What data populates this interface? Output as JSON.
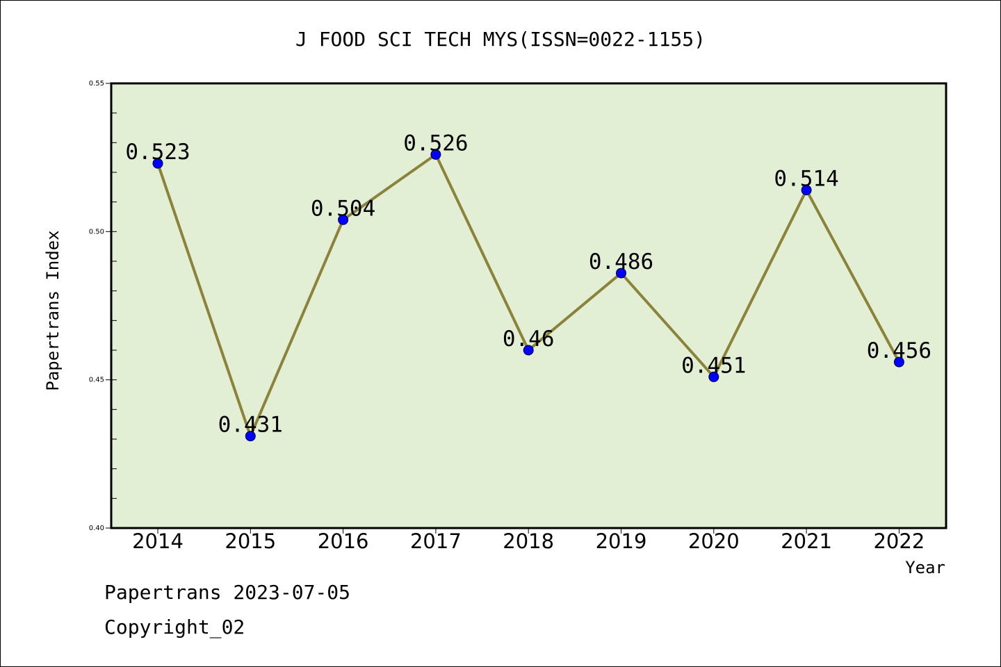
{
  "chart_data": {
    "type": "line",
    "title": "J FOOD SCI TECH MYS(ISSN=0022-1155)",
    "xlabel": "Year",
    "ylabel": "Papertrans Index",
    "categories": [
      "2014",
      "2015",
      "2016",
      "2017",
      "2018",
      "2019",
      "2020",
      "2021",
      "2022"
    ],
    "series": [
      {
        "values": [
          0.523,
          0.431,
          0.504,
          0.526,
          0.46,
          0.486,
          0.451,
          0.514,
          0.456
        ],
        "labels": [
          "0.523",
          "0.431",
          "0.504",
          "0.526",
          "0.46",
          "0.486",
          "0.451",
          "0.514",
          "0.456"
        ]
      }
    ],
    "ylim": [
      0.4,
      0.55
    ],
    "yticks": [
      "0.40",
      "0.45",
      "0.50",
      "0.55"
    ],
    "grid": false,
    "colors": {
      "plot_background": "#e2efd5",
      "line": "#8b8339",
      "marker": "#0000ff"
    }
  },
  "footer": {
    "line1": "Papertrans 2023-07-05",
    "line2": "Copyright_02"
  }
}
